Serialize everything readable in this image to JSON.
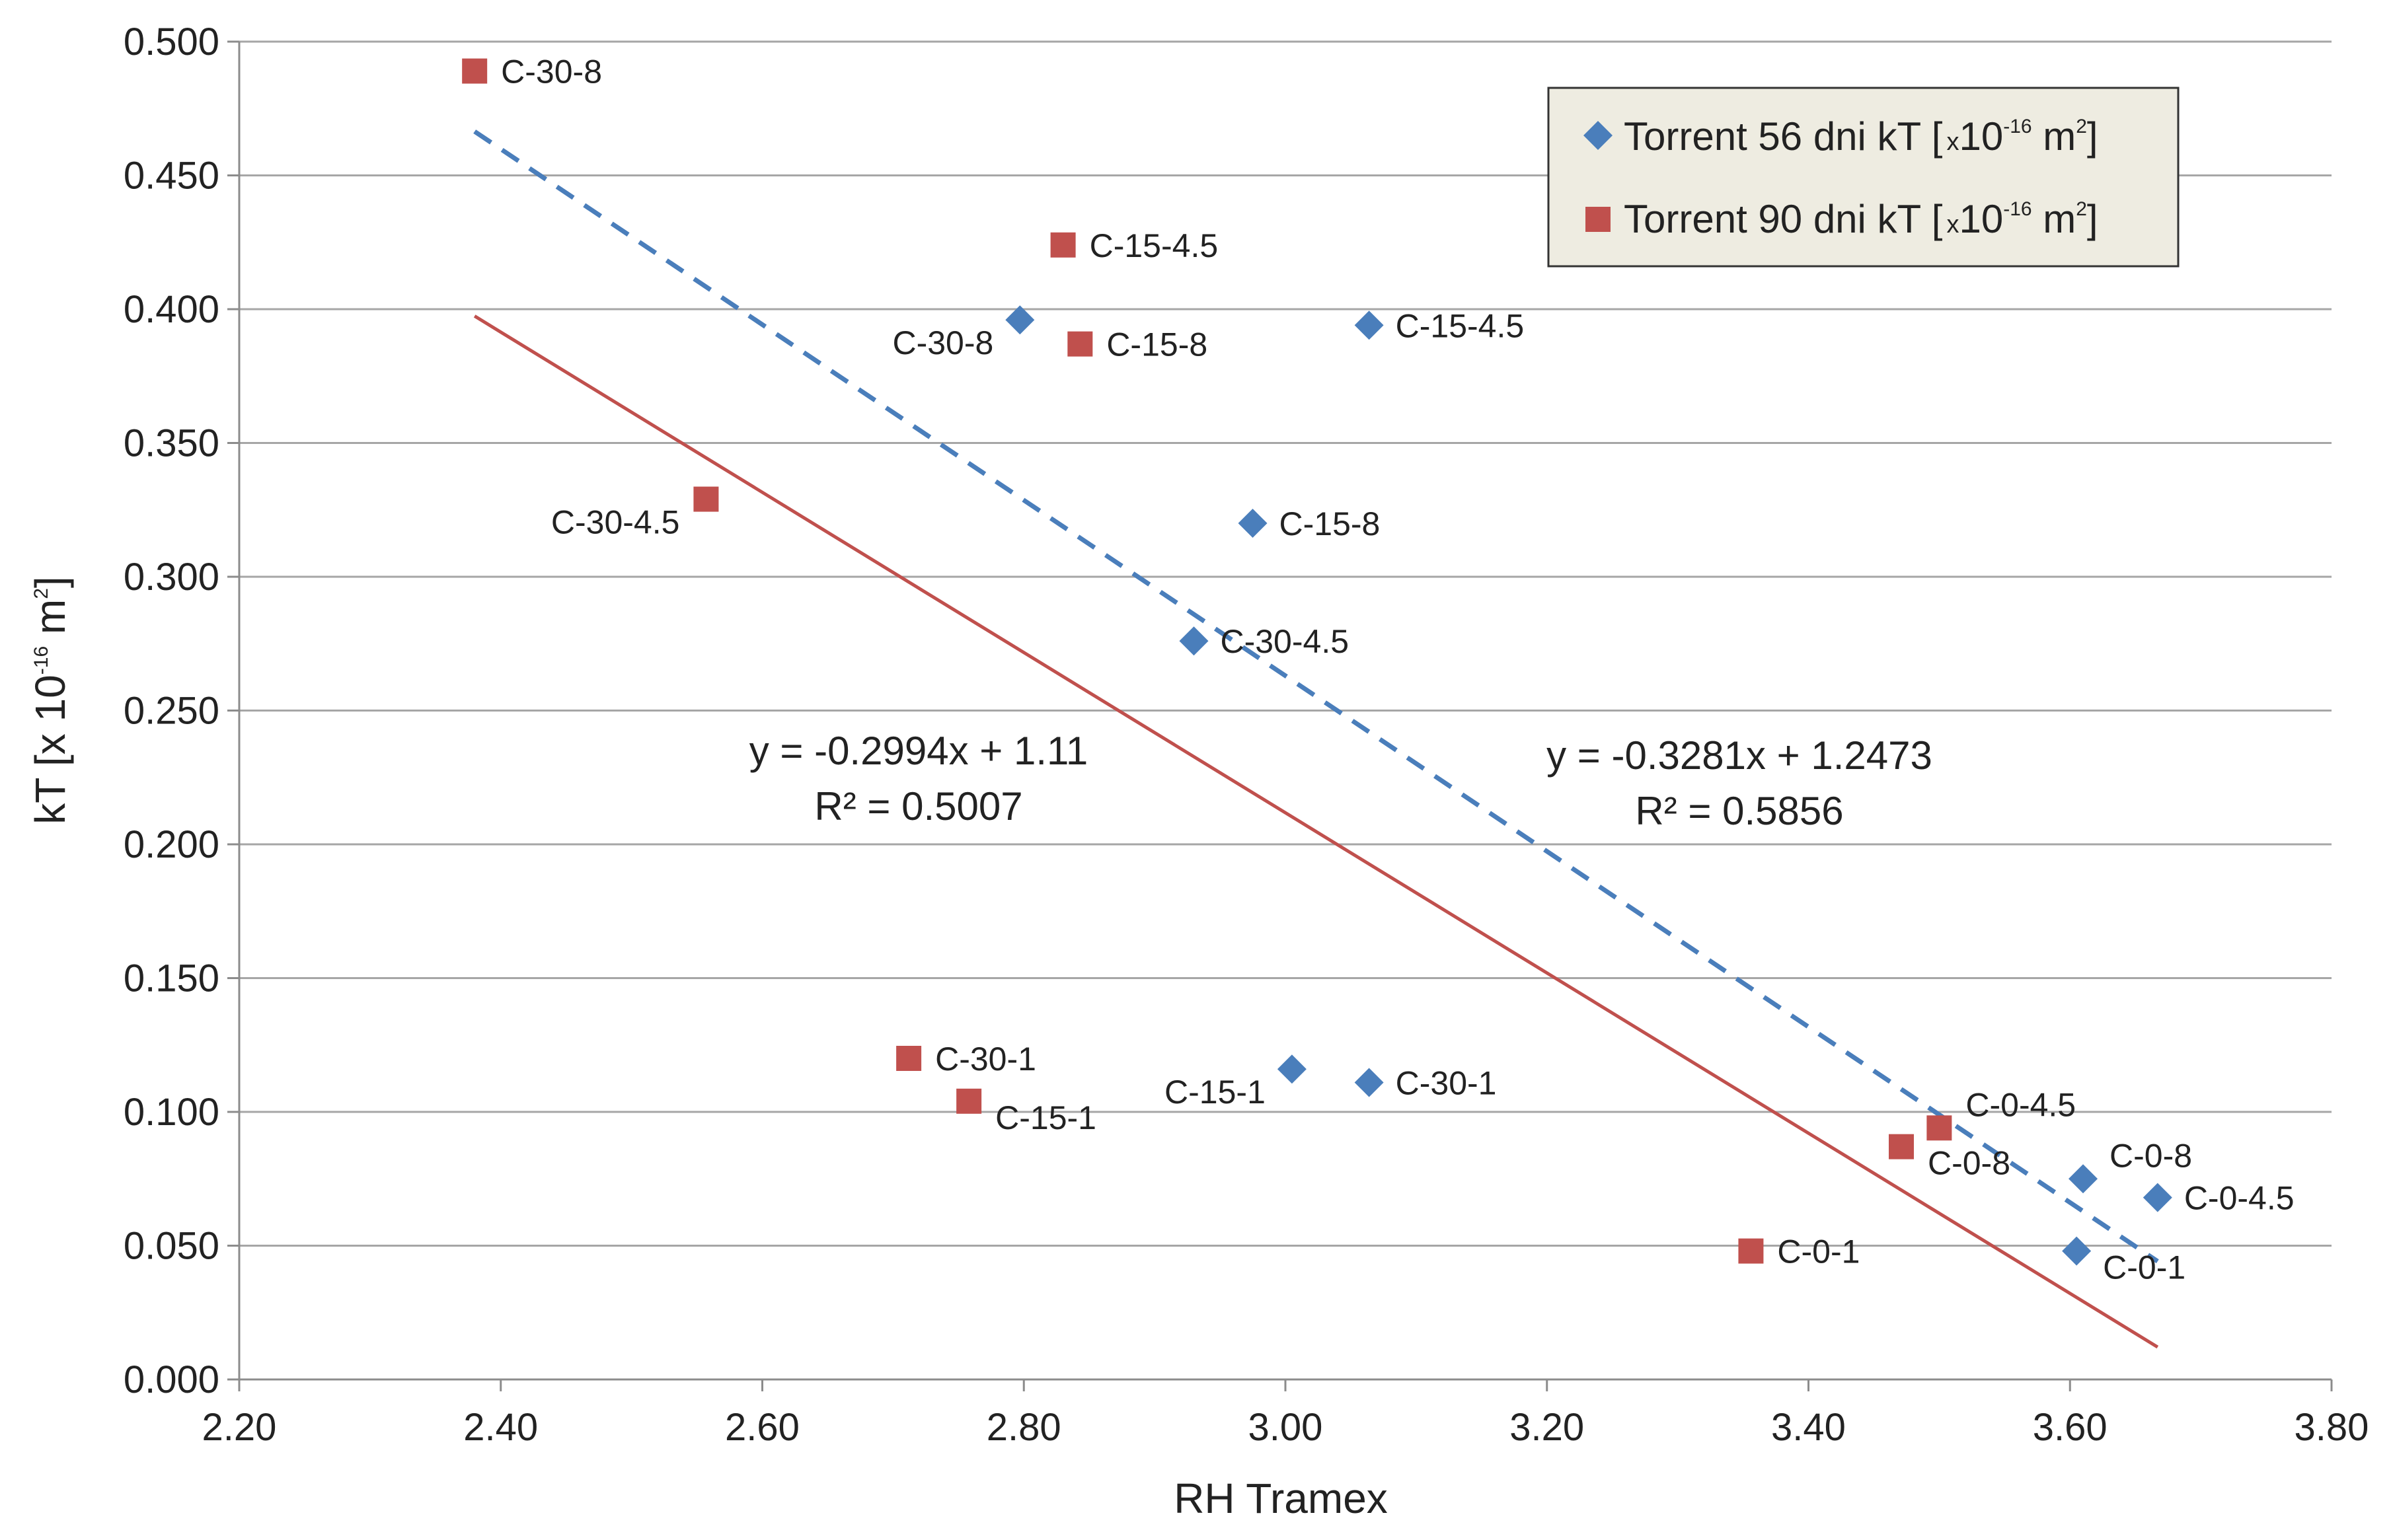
{
  "chart_data": {
    "type": "scatter",
    "xlabel": "RH Tramex",
    "ylabel": {
      "main": "kT [x 10",
      "exp": "-16",
      "unit": " m",
      "unit_exp": "2",
      "close": "]"
    },
    "xlim": [
      2.2,
      3.8
    ],
    "ylim": [
      0.0,
      0.5
    ],
    "xticks": [
      2.2,
      2.4,
      2.6,
      2.8,
      3.0,
      3.2,
      3.4,
      3.6,
      3.8
    ],
    "xtick_labels": [
      "2.20",
      "2.40",
      "2.60",
      "2.80",
      "3.00",
      "3.20",
      "3.40",
      "3.60",
      "3.80"
    ],
    "yticks": [
      0.0,
      0.05,
      0.1,
      0.15,
      0.2,
      0.25,
      0.3,
      0.35,
      0.4,
      0.45,
      0.5
    ],
    "ytick_labels": [
      "0.000",
      "0.050",
      "0.100",
      "0.150",
      "0.200",
      "0.250",
      "0.300",
      "0.350",
      "0.400",
      "0.450",
      "0.500"
    ],
    "grid": "horizontal",
    "legend_position": "top-right",
    "series": [
      {
        "name": "Torrent 56 dni kT",
        "legend": {
          "name": "Torrent 56 dni kT [",
          "x": "x",
          "ten": "10",
          "exp": "-16",
          "unit": " m",
          "unit_exp": "2",
          "close": "]"
        },
        "marker": "diamond",
        "color": "#4a7ebb",
        "points": [
          {
            "x": 2.797,
            "y": 0.396,
            "label": "C-30-8",
            "label_side": "left"
          },
          {
            "x": 3.064,
            "y": 0.394,
            "label": "C-15-4.5",
            "label_side": "right"
          },
          {
            "x": 2.975,
            "y": 0.32,
            "label": "C-15-8",
            "label_side": "right"
          },
          {
            "x": 2.93,
            "y": 0.276,
            "label": "C-30-4.5",
            "label_side": "right"
          },
          {
            "x": 3.005,
            "y": 0.116,
            "label": "C-15-1",
            "label_side": "left"
          },
          {
            "x": 3.064,
            "y": 0.111,
            "label": "C-30-1",
            "label_side": "right"
          },
          {
            "x": 3.61,
            "y": 0.075,
            "label": "C-0-8",
            "label_side": "right-up"
          },
          {
            "x": 3.667,
            "y": 0.068,
            "label": "C-0-4.5",
            "label_side": "right"
          },
          {
            "x": 3.605,
            "y": 0.048,
            "label": "C-0-1",
            "label_side": "right-down"
          }
        ],
        "trendline": {
          "x_range": [
            2.38,
            3.667
          ],
          "slope": -0.3281,
          "intercept": 1.2473,
          "style": "dashed",
          "equation": "y = -0.3281x + 1.2473",
          "r2": "R² = 0.5856"
        }
      },
      {
        "name": "Torrent 90 dni kT",
        "legend": {
          "name": "Torrent 90 dni kT [",
          "x": "x",
          "ten": "10",
          "exp": "-16",
          "unit": " m",
          "unit_exp": "2",
          "close": "]"
        },
        "marker": "square",
        "color": "#c0504d",
        "points": [
          {
            "x": 2.38,
            "y": 0.489,
            "label": "C-30-8",
            "label_side": "right"
          },
          {
            "x": 2.83,
            "y": 0.424,
            "label": "C-15-4.5",
            "label_side": "right"
          },
          {
            "x": 2.843,
            "y": 0.387,
            "label": "C-15-8",
            "label_side": "right"
          },
          {
            "x": 2.557,
            "y": 0.329,
            "label": "C-30-4.5",
            "label_side": "left"
          },
          {
            "x": 2.712,
            "y": 0.12,
            "label": "C-30-1",
            "label_side": "right"
          },
          {
            "x": 2.758,
            "y": 0.104,
            "label": "C-15-1",
            "label_side": "right-down"
          },
          {
            "x": 3.5,
            "y": 0.094,
            "label": "C-0-4.5",
            "label_side": "right-up"
          },
          {
            "x": 3.471,
            "y": 0.087,
            "label": "C-0-8",
            "label_side": "right-down"
          },
          {
            "x": 3.356,
            "y": 0.048,
            "label": "C-0-1",
            "label_side": "right"
          }
        ],
        "trendline": {
          "x_range": [
            2.38,
            3.667
          ],
          "slope": -0.2994,
          "intercept": 1.11,
          "style": "solid",
          "equation": "y = -0.2994x + 1.11",
          "r2": "R² = 0.5007"
        }
      }
    ]
  }
}
